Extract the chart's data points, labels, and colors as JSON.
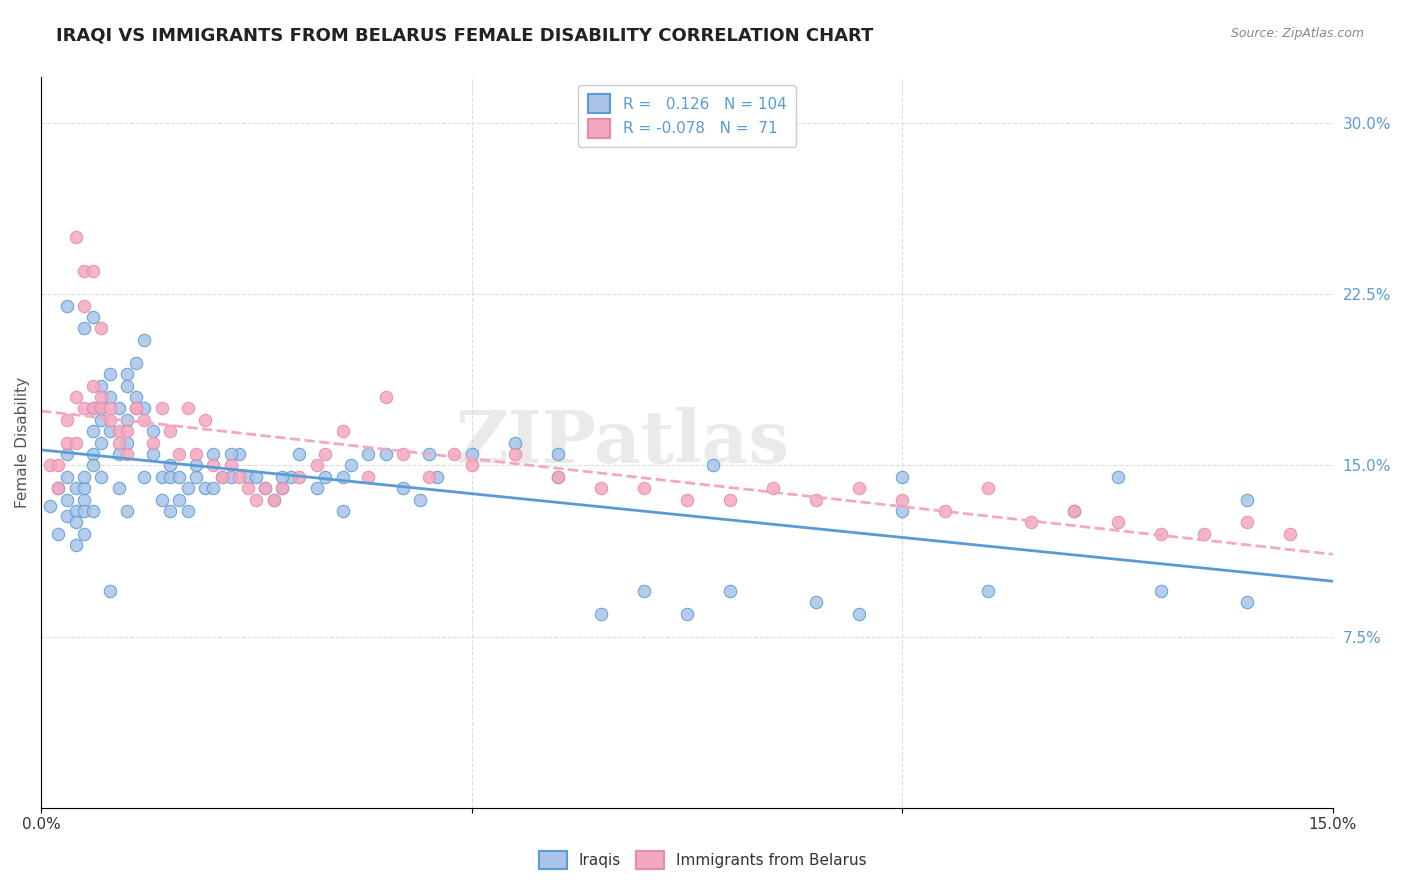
{
  "title": "IRAQI VS IMMIGRANTS FROM BELARUS FEMALE DISABILITY CORRELATION CHART",
  "source": "Source: ZipAtlas.com",
  "xlabel_bottom": "",
  "ylabel": "Female Disability",
  "xlim": [
    0.0,
    0.15
  ],
  "ylim": [
    0.0,
    0.32
  ],
  "xticks": [
    0.0,
    0.05,
    0.1,
    0.15
  ],
  "xtick_labels": [
    "0.0%",
    "",
    "",
    "15.0%"
  ],
  "ytick_labels_right": [
    "7.5%",
    "15.0%",
    "22.5%",
    "30.0%"
  ],
  "yticks_right": [
    0.075,
    0.15,
    0.225,
    0.3
  ],
  "legend_r1": "R =   0.126   N = 104",
  "legend_r2": "R = -0.078   N =  71",
  "color_iraqi": "#aac4e8",
  "color_belarus": "#f4a8c0",
  "line_color_iraqi": "#5b9bd5",
  "line_color_belarus": "#f4a8c0",
  "watermark": "ZIPatlas",
  "legend_label1": "Iraqis",
  "legend_label2": "Immigrants from Belarus",
  "iraqi_x": [
    0.001,
    0.002,
    0.002,
    0.003,
    0.003,
    0.003,
    0.003,
    0.004,
    0.004,
    0.004,
    0.004,
    0.005,
    0.005,
    0.005,
    0.005,
    0.005,
    0.006,
    0.006,
    0.006,
    0.006,
    0.006,
    0.007,
    0.007,
    0.007,
    0.007,
    0.008,
    0.008,
    0.008,
    0.009,
    0.009,
    0.009,
    0.01,
    0.01,
    0.01,
    0.01,
    0.011,
    0.011,
    0.012,
    0.012,
    0.013,
    0.013,
    0.014,
    0.014,
    0.015,
    0.015,
    0.016,
    0.016,
    0.017,
    0.017,
    0.018,
    0.019,
    0.02,
    0.02,
    0.021,
    0.022,
    0.023,
    0.024,
    0.025,
    0.026,
    0.027,
    0.028,
    0.029,
    0.03,
    0.032,
    0.033,
    0.035,
    0.036,
    0.038,
    0.04,
    0.042,
    0.044,
    0.046,
    0.05,
    0.055,
    0.06,
    0.065,
    0.07,
    0.075,
    0.08,
    0.09,
    0.095,
    0.1,
    0.11,
    0.12,
    0.13,
    0.14,
    0.003,
    0.005,
    0.006,
    0.007,
    0.008,
    0.01,
    0.012,
    0.015,
    0.018,
    0.022,
    0.028,
    0.035,
    0.045,
    0.06,
    0.078,
    0.1,
    0.125,
    0.14
  ],
  "iraqi_y": [
    0.132,
    0.14,
    0.12,
    0.135,
    0.145,
    0.128,
    0.155,
    0.13,
    0.14,
    0.125,
    0.115,
    0.14,
    0.135,
    0.145,
    0.13,
    0.12,
    0.155,
    0.175,
    0.165,
    0.15,
    0.13,
    0.185,
    0.17,
    0.16,
    0.145,
    0.19,
    0.18,
    0.165,
    0.175,
    0.155,
    0.14,
    0.19,
    0.185,
    0.17,
    0.16,
    0.195,
    0.18,
    0.205,
    0.175,
    0.165,
    0.155,
    0.145,
    0.135,
    0.145,
    0.13,
    0.145,
    0.135,
    0.14,
    0.13,
    0.145,
    0.14,
    0.155,
    0.14,
    0.145,
    0.145,
    0.155,
    0.145,
    0.145,
    0.14,
    0.135,
    0.14,
    0.145,
    0.155,
    0.14,
    0.145,
    0.145,
    0.15,
    0.155,
    0.155,
    0.14,
    0.135,
    0.145,
    0.155,
    0.16,
    0.155,
    0.085,
    0.095,
    0.085,
    0.095,
    0.09,
    0.085,
    0.13,
    0.095,
    0.13,
    0.095,
    0.09,
    0.22,
    0.21,
    0.215,
    0.175,
    0.095,
    0.13,
    0.145,
    0.15,
    0.15,
    0.155,
    0.145,
    0.13,
    0.155,
    0.145,
    0.15,
    0.145,
    0.145,
    0.135
  ],
  "belarus_x": [
    0.001,
    0.002,
    0.002,
    0.003,
    0.003,
    0.004,
    0.004,
    0.004,
    0.005,
    0.005,
    0.005,
    0.006,
    0.006,
    0.006,
    0.007,
    0.007,
    0.007,
    0.008,
    0.008,
    0.009,
    0.009,
    0.01,
    0.01,
    0.011,
    0.011,
    0.012,
    0.013,
    0.014,
    0.015,
    0.016,
    0.017,
    0.018,
    0.019,
    0.02,
    0.021,
    0.022,
    0.023,
    0.024,
    0.025,
    0.026,
    0.027,
    0.028,
    0.03,
    0.032,
    0.033,
    0.035,
    0.038,
    0.04,
    0.042,
    0.045,
    0.048,
    0.05,
    0.055,
    0.06,
    0.065,
    0.07,
    0.075,
    0.08,
    0.085,
    0.09,
    0.095,
    0.1,
    0.105,
    0.11,
    0.115,
    0.12,
    0.125,
    0.13,
    0.135,
    0.14,
    0.145
  ],
  "belarus_y": [
    0.15,
    0.15,
    0.14,
    0.16,
    0.17,
    0.18,
    0.25,
    0.16,
    0.175,
    0.235,
    0.22,
    0.235,
    0.185,
    0.175,
    0.18,
    0.21,
    0.175,
    0.175,
    0.17,
    0.165,
    0.16,
    0.165,
    0.155,
    0.175,
    0.175,
    0.17,
    0.16,
    0.175,
    0.165,
    0.155,
    0.175,
    0.155,
    0.17,
    0.15,
    0.145,
    0.15,
    0.145,
    0.14,
    0.135,
    0.14,
    0.135,
    0.14,
    0.145,
    0.15,
    0.155,
    0.165,
    0.145,
    0.18,
    0.155,
    0.145,
    0.155,
    0.15,
    0.155,
    0.145,
    0.14,
    0.14,
    0.135,
    0.135,
    0.14,
    0.135,
    0.14,
    0.135,
    0.13,
    0.14,
    0.125,
    0.13,
    0.125,
    0.12,
    0.12,
    0.125,
    0.12
  ],
  "title_fontsize": 13,
  "axis_fontsize": 11,
  "tick_fontsize": 11,
  "background_color": "#ffffff",
  "grid_color": "#dddddd"
}
